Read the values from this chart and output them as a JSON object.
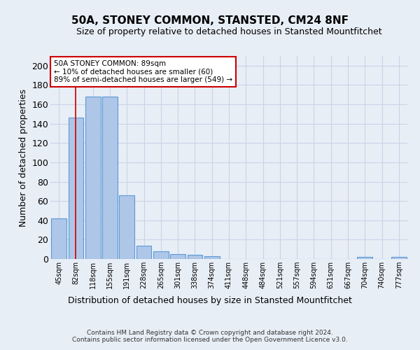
{
  "title": "50A, STONEY COMMON, STANSTED, CM24 8NF",
  "subtitle": "Size of property relative to detached houses in Stansted Mountfitchet",
  "xlabel": "Distribution of detached houses by size in Stansted Mountfitchet",
  "ylabel": "Number of detached properties",
  "footer_line1": "Contains HM Land Registry data © Crown copyright and database right 2024.",
  "footer_line2": "Contains public sector information licensed under the Open Government Licence v3.0.",
  "categories": [
    "45sqm",
    "82sqm",
    "118sqm",
    "155sqm",
    "191sqm",
    "228sqm",
    "265sqm",
    "301sqm",
    "338sqm",
    "374sqm",
    "411sqm",
    "448sqm",
    "484sqm",
    "521sqm",
    "557sqm",
    "594sqm",
    "631sqm",
    "667sqm",
    "704sqm",
    "740sqm",
    "777sqm"
  ],
  "values": [
    42,
    146,
    168,
    168,
    66,
    14,
    8,
    5,
    4,
    3,
    0,
    0,
    0,
    0,
    0,
    0,
    0,
    0,
    2,
    0,
    2
  ],
  "bar_color": "#aec6e8",
  "bar_edge_color": "#5b9bd5",
  "grid_color": "#c8d4e8",
  "background_color": "#e8eef6",
  "red_line_x": 1.0,
  "annotation_text": "50A STONEY COMMON: 89sqm\n← 10% of detached houses are smaller (60)\n89% of semi-detached houses are larger (549) →",
  "annotation_box_color": "#ffffff",
  "annotation_box_edge": "#cc0000",
  "ylim": [
    0,
    210
  ],
  "yticks": [
    0,
    20,
    40,
    60,
    80,
    100,
    120,
    140,
    160,
    180,
    200
  ]
}
